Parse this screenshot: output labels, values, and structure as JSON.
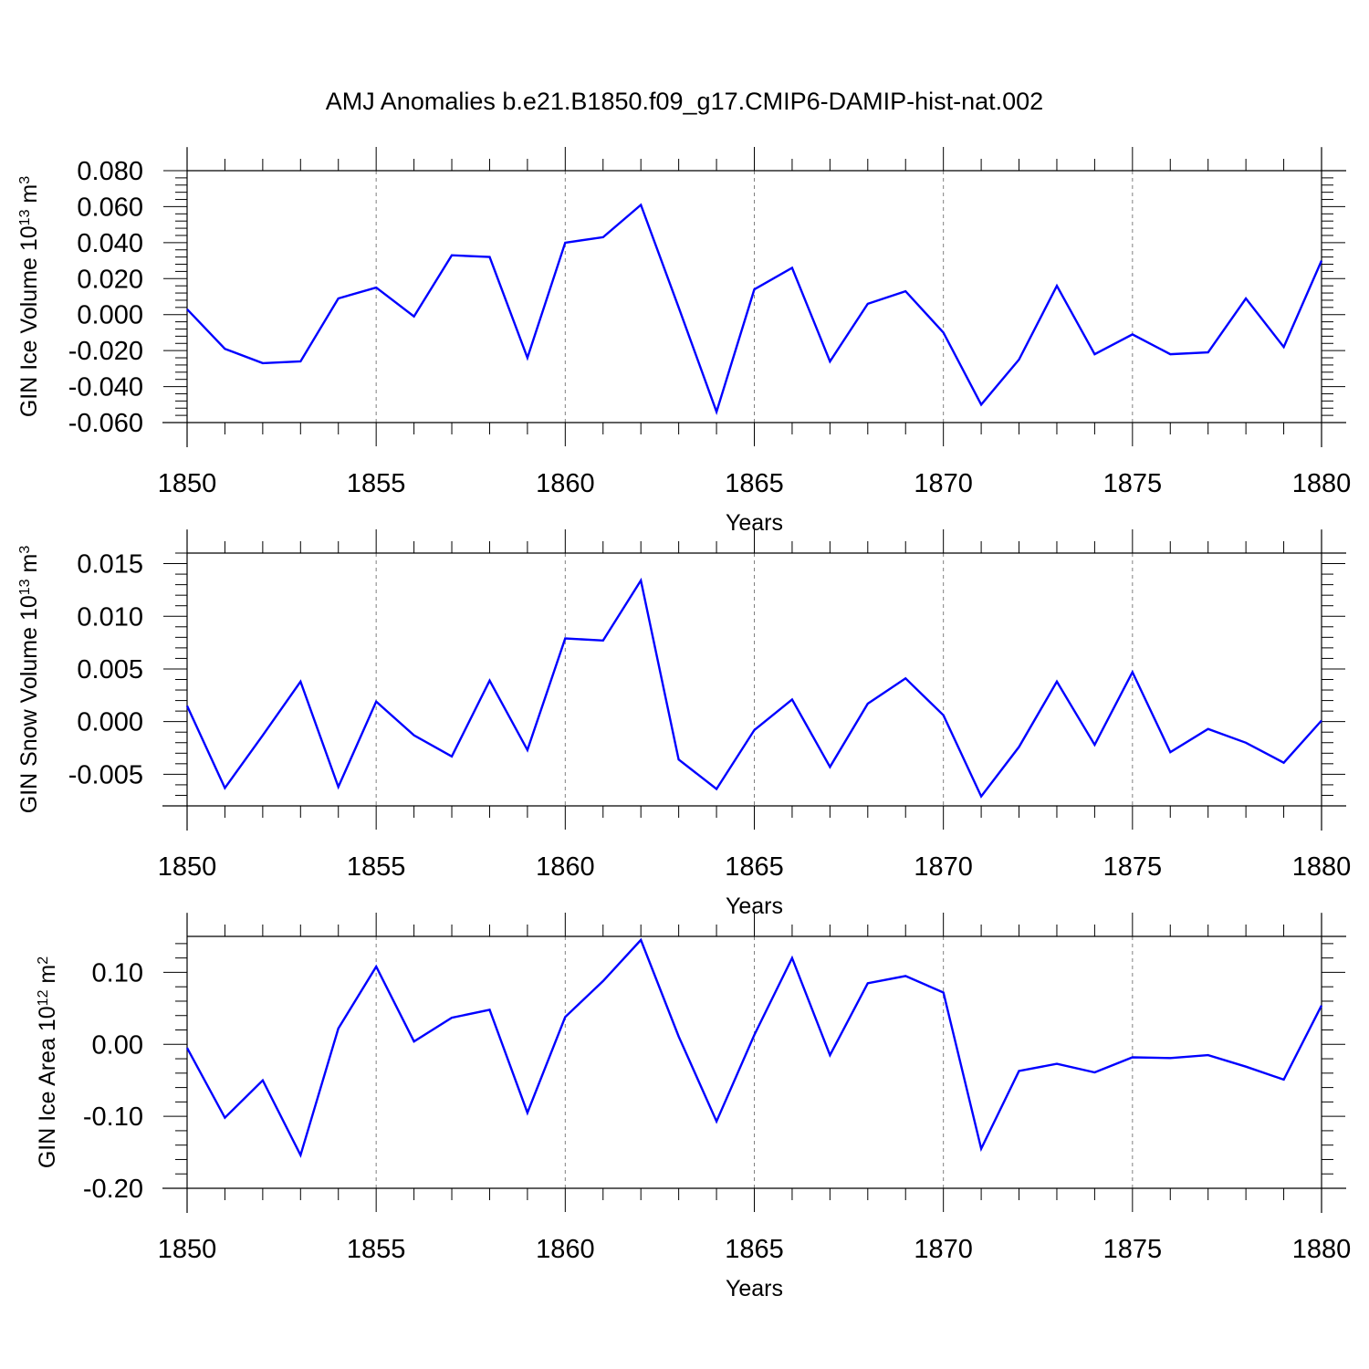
{
  "figure": {
    "title": "AMJ Anomalies b.e21.B1850.f09_g17.CMIP6-DAMIP-hist-nat.002"
  },
  "colors": {
    "line": "#0000ff",
    "axis": "#000000",
    "grid": "#808080"
  },
  "chart_data": [
    {
      "type": "line",
      "title": "AMJ Anomalies b.e21.B1850.f09_g17.CMIP6-DAMIP-hist-nat.002",
      "xlabel": "Years",
      "ylabel": {
        "text": "GIN Ice Volume 10",
        "exp1": "13",
        "mid": " m",
        "exp2": "3"
      },
      "xlim": [
        1850,
        1880
      ],
      "ylim": [
        -0.06,
        0.08
      ],
      "x_ticks": [
        "1850",
        "1855",
        "1860",
        "1865",
        "1870",
        "1875",
        "1880"
      ],
      "y_ticks": [
        -0.06,
        -0.04,
        -0.02,
        0.0,
        0.02,
        0.04,
        0.06,
        0.08
      ],
      "y_tick_labels": [
        "-0.060",
        "-0.040",
        "-0.020",
        "0.000",
        "0.020",
        "0.040",
        "0.060",
        "0.080"
      ],
      "grid": "vertical dashed at major x ticks",
      "x": [
        1850,
        1851,
        1852,
        1853,
        1854,
        1855,
        1856,
        1857,
        1858,
        1859,
        1860,
        1861,
        1862,
        1863,
        1864,
        1865,
        1866,
        1867,
        1868,
        1869,
        1870,
        1871,
        1872,
        1873,
        1874,
        1875,
        1876,
        1877,
        1878,
        1879,
        1880
      ],
      "values": [
        0.003,
        -0.019,
        -0.027,
        -0.026,
        0.009,
        0.015,
        -0.001,
        0.033,
        0.032,
        -0.024,
        0.04,
        0.043,
        0.061,
        0.004,
        -0.054,
        0.014,
        0.026,
        -0.026,
        0.006,
        0.013,
        -0.01,
        -0.05,
        -0.025,
        0.016,
        -0.022,
        -0.011,
        -0.022,
        -0.021,
        0.009,
        -0.018,
        0.03
      ]
    },
    {
      "type": "line",
      "xlabel": "Years",
      "ylabel": {
        "text": "GIN Snow Volume 10",
        "exp1": "13",
        "mid": " m",
        "exp2": "3"
      },
      "xlim": [
        1850,
        1880
      ],
      "ylim": [
        -0.008,
        0.016
      ],
      "x_ticks": [
        "1850",
        "1855",
        "1860",
        "1865",
        "1870",
        "1875",
        "1880"
      ],
      "y_ticks": [
        -0.005,
        0.0,
        0.005,
        0.01,
        0.015
      ],
      "y_tick_labels": [
        "-0.005",
        "0.000",
        "0.005",
        "0.010",
        "0.015"
      ],
      "grid": "vertical dashed at major x ticks",
      "x": [
        1850,
        1851,
        1852,
        1853,
        1854,
        1855,
        1856,
        1857,
        1858,
        1859,
        1860,
        1861,
        1862,
        1863,
        1864,
        1865,
        1866,
        1867,
        1868,
        1869,
        1870,
        1871,
        1872,
        1873,
        1874,
        1875,
        1876,
        1877,
        1878,
        1879,
        1880
      ],
      "values": [
        0.0015,
        -0.0063,
        -0.0013,
        0.0038,
        -0.0062,
        0.0019,
        -0.0013,
        -0.0033,
        0.0039,
        -0.0027,
        0.0079,
        0.0077,
        0.0134,
        -0.0036,
        -0.0064,
        -0.0008,
        0.0021,
        -0.0043,
        0.0017,
        0.0041,
        0.0006,
        -0.0071,
        -0.0024,
        0.0038,
        -0.0022,
        0.0047,
        -0.0029,
        -0.0007,
        -0.002,
        -0.0039,
        0.0001
      ]
    },
    {
      "type": "line",
      "xlabel": "Years",
      "ylabel": {
        "text": "GIN Ice Area 10",
        "exp1": "12",
        "mid": " m",
        "exp2": "2"
      },
      "xlim": [
        1850,
        1880
      ],
      "ylim": [
        -0.2,
        0.15
      ],
      "x_ticks": [
        "1850",
        "1855",
        "1860",
        "1865",
        "1870",
        "1875",
        "1880"
      ],
      "y_ticks": [
        -0.2,
        -0.1,
        0.0,
        0.1
      ],
      "y_tick_labels": [
        "-0.20",
        "-0.10",
        "0.00",
        "0.10"
      ],
      "grid": "vertical dashed at major x ticks",
      "x": [
        1850,
        1851,
        1852,
        1853,
        1854,
        1855,
        1856,
        1857,
        1858,
        1859,
        1860,
        1861,
        1862,
        1863,
        1864,
        1865,
        1866,
        1867,
        1868,
        1869,
        1870,
        1871,
        1872,
        1873,
        1874,
        1875,
        1876,
        1877,
        1878,
        1879,
        1880
      ],
      "values": [
        -0.005,
        -0.102,
        -0.05,
        -0.154,
        0.022,
        0.108,
        0.004,
        0.037,
        0.048,
        -0.095,
        0.038,
        0.088,
        0.145,
        0.011,
        -0.107,
        0.013,
        0.12,
        -0.015,
        0.085,
        0.095,
        0.072,
        -0.145,
        -0.037,
        -0.027,
        -0.039,
        -0.018,
        -0.019,
        -0.015,
        -0.031,
        -0.049,
        0.054
      ]
    }
  ]
}
